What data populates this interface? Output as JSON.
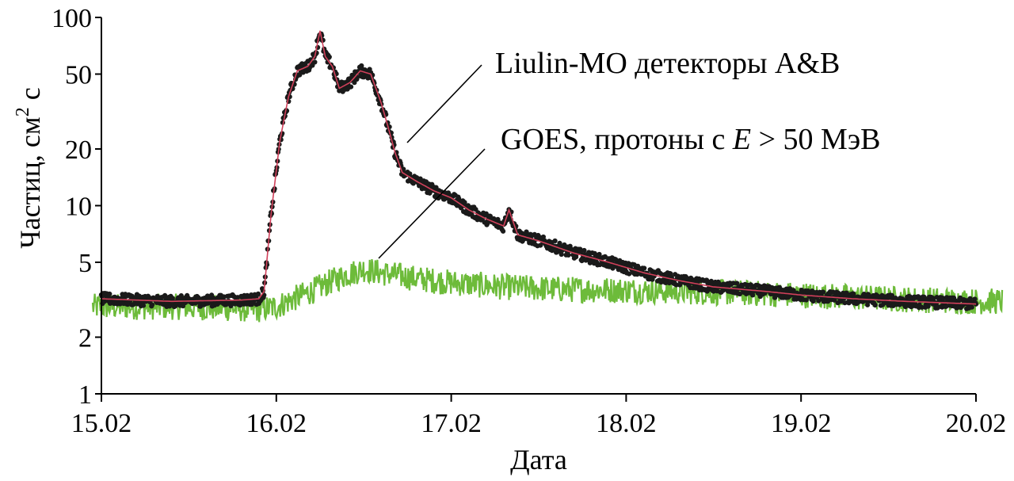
{
  "chart_data": {
    "type": "line",
    "title": "",
    "xlabel": "Дата",
    "ylabel": "Частиц, см",
    "ylabel_sup": "2",
    "ylabel_tail": " с",
    "yscale": "log",
    "ylim": [
      1,
      100
    ],
    "xlim": [
      15.0,
      20.0
    ],
    "y_ticks": [
      1,
      2,
      5,
      10,
      20,
      50,
      100
    ],
    "y_tick_labels": [
      "1",
      "2",
      "5",
      "10",
      "20",
      "50",
      "100"
    ],
    "x_ticks": [
      15,
      16,
      17,
      18,
      19,
      20
    ],
    "x_tick_labels": [
      "15.02",
      "16.02",
      "17.02",
      "18.02",
      "19.02",
      "20.02"
    ],
    "annotations": [
      {
        "text": "Liulin-MO детекторы A&B",
        "target_x": 16.7,
        "target_y": 20
      },
      {
        "text_pre": "GOES, протоны с ",
        "text_var": "E",
        "text_post": " > 50 МэВ",
        "target_x": 16.55,
        "target_y": 4.6
      }
    ],
    "series": [
      {
        "name": "Liulin-MO детекторы A&B",
        "color": "#1a1a1a",
        "fit_color": "#d0405a",
        "style": "points",
        "x": [
          15.0,
          15.4,
          15.8,
          15.9,
          15.93,
          15.97,
          16.02,
          16.07,
          16.12,
          16.18,
          16.22,
          16.25,
          16.28,
          16.32,
          16.36,
          16.42,
          16.48,
          16.54,
          16.6,
          16.64,
          16.68,
          16.72,
          16.8,
          16.9,
          17.0,
          17.1,
          17.2,
          17.3,
          17.33,
          17.38,
          17.5,
          17.7,
          17.9,
          18.1,
          18.3,
          18.5,
          18.8,
          19.0,
          19.3,
          19.6,
          20.0
        ],
        "y": [
          3.2,
          3.1,
          3.15,
          3.2,
          3.5,
          9,
          22,
          38,
          52,
          55,
          62,
          85,
          62,
          55,
          42,
          45,
          52,
          50,
          35,
          26,
          19,
          15,
          13.5,
          12,
          11,
          9.5,
          8.5,
          7.8,
          9.5,
          7.0,
          6.5,
          5.6,
          5.0,
          4.4,
          4.0,
          3.7,
          3.5,
          3.35,
          3.2,
          3.1,
          3.0
        ]
      },
      {
        "name": "GOES, протоны с E > 50 МэВ",
        "color": "#6dbb3a",
        "style": "line",
        "x": [
          14.95,
          15.5,
          15.9,
          16.0,
          16.1,
          16.2,
          16.3,
          16.4,
          16.5,
          16.6,
          16.8,
          17.0,
          17.3,
          17.6,
          18.0,
          18.3,
          18.6,
          19.0,
          19.5,
          20.0,
          20.15
        ],
        "y": [
          2.9,
          2.9,
          2.8,
          2.9,
          3.2,
          3.5,
          3.9,
          4.3,
          4.6,
          4.4,
          4.1,
          3.9,
          3.7,
          3.6,
          3.55,
          3.5,
          3.45,
          3.35,
          3.2,
          3.1,
          3.1
        ]
      }
    ]
  }
}
